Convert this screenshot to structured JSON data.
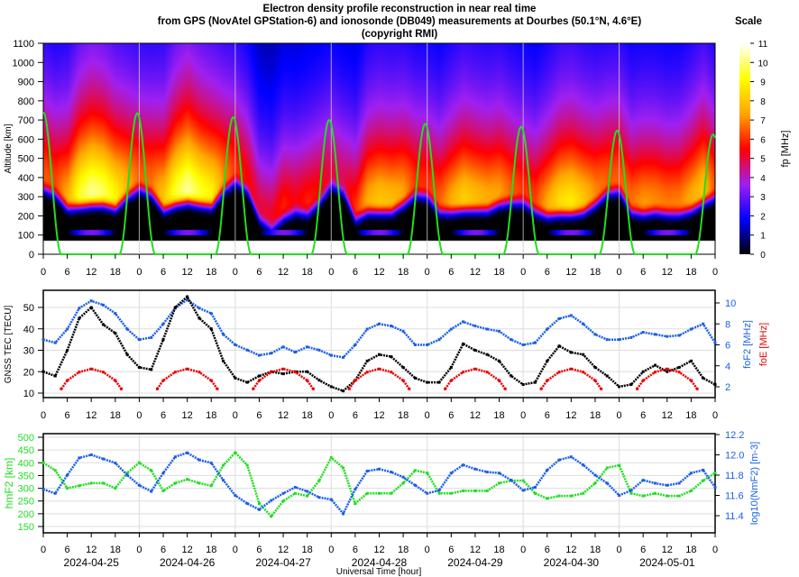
{
  "title": {
    "line1": "Electron density profile reconstruction in near real time",
    "line2": "from GPS (NovAtel GPStation-6) and ionosonde (DB049) measurements at Dourbes (50.1°N, 4.6°E)",
    "line3": "(copyright RMI)",
    "scale_label": "Scale"
  },
  "xaxis": {
    "label": "Universal Time [hour]",
    "hour_ticks": [
      "0",
      "6",
      "12",
      "18"
    ],
    "end_tick": "0",
    "dates": [
      "2024-04-25",
      "2024-04-26",
      "2024-04-27",
      "2024-04-28",
      "2024-04-29",
      "2024-04-30",
      "2024-05-01"
    ]
  },
  "colors": {
    "tec": "#000000",
    "foF2": "#1a5fe6",
    "foE": "#e60000",
    "hmF2": "#22dd22",
    "NmF2": "#1a5fe6",
    "solar_curve": "#22dd22"
  },
  "chart_data": [
    {
      "type": "heatmap",
      "ylabel": "Altitude [km]",
      "ylim": [
        0,
        1100
      ],
      "yticks": [
        "0",
        "100",
        "200",
        "300",
        "400",
        "500",
        "600",
        "700",
        "800",
        "900",
        "1000",
        "1100"
      ],
      "xlim_hours": [
        0,
        168
      ],
      "colorbar": {
        "label": "fp [MHz]",
        "range": [
          0,
          11
        ],
        "ticks": [
          "0",
          "1",
          "2",
          "3",
          "4",
          "5",
          "6",
          "7",
          "8",
          "9",
          "10",
          "11"
        ],
        "colormap": [
          "#000000",
          "#0000ff",
          "#a020f0",
          "#ff0000",
          "#ffa500",
          "#ffff00",
          "#ffffff"
        ]
      },
      "min_altitude_km": 75,
      "green_curve": {
        "peak_hours": [
          0,
          23.5,
          47.5,
          71.5,
          95.5,
          119.5,
          143.5,
          167.5
        ],
        "peak_altitude_km": [
          740,
          735,
          715,
          700,
          680,
          665,
          645,
          625
        ],
        "halfwidth_hours": 4.5
      }
    },
    {
      "type": "scatter",
      "ylabel_left": "GNSS TEC [TECU]",
      "ylabel_right": [
        "foF2 [MHz]",
        "foE [MHz]"
      ],
      "left_ticks": [
        "10",
        "20",
        "30",
        "40",
        "50"
      ],
      "right_ticks": [
        "2",
        "4",
        "6",
        "8",
        "10"
      ],
      "x_hours": [
        0,
        3,
        6,
        9,
        12,
        15,
        18,
        21,
        24,
        27,
        30,
        33,
        36,
        39,
        42,
        45,
        48,
        51,
        54,
        57,
        60,
        63,
        66,
        69,
        72,
        75,
        78,
        81,
        84,
        87,
        90,
        93,
        96,
        99,
        102,
        105,
        108,
        111,
        114,
        117,
        120,
        123,
        126,
        129,
        132,
        135,
        138,
        141,
        144,
        147,
        150,
        153,
        156,
        159,
        162,
        165,
        168
      ],
      "series": [
        {
          "name": "GNSS TEC [TECU]",
          "axis": "left",
          "values": [
            20,
            18,
            30,
            45,
            50,
            42,
            38,
            28,
            22,
            21,
            35,
            50,
            55,
            45,
            40,
            25,
            17,
            15,
            18,
            20,
            19,
            20,
            20,
            16,
            13,
            11,
            16,
            25,
            28,
            27,
            22,
            17,
            15,
            15,
            22,
            33,
            30,
            28,
            25,
            18,
            14,
            15,
            25,
            32,
            29,
            28,
            22,
            18,
            13,
            14,
            20,
            23,
            20,
            22,
            25,
            17,
            14
          ]
        },
        {
          "name": "foF2 [MHz]",
          "axis": "right",
          "values": [
            6.5,
            6.2,
            7.5,
            9.5,
            10.2,
            9.8,
            9.0,
            7.5,
            6.5,
            6.7,
            8.0,
            9.5,
            10.3,
            9.5,
            9.0,
            7.0,
            6.0,
            5.5,
            5.0,
            5.2,
            5.8,
            5.3,
            5.8,
            5.5,
            5.0,
            4.8,
            6.0,
            7.5,
            8.0,
            7.8,
            7.3,
            6.0,
            6.0,
            6.5,
            7.5,
            8.2,
            7.8,
            7.5,
            7.3,
            6.5,
            6.0,
            6.2,
            7.5,
            8.5,
            8.8,
            8.0,
            7.0,
            6.5,
            6.5,
            6.7,
            7.2,
            7.0,
            6.8,
            6.9,
            7.5,
            8.0,
            6.2
          ]
        },
        {
          "name": "foE [MHz]",
          "axis": "right",
          "daily_hours": [
            4.5,
            6,
            9,
            12,
            15,
            18,
            19.5
          ],
          "daily_values": [
            1.8,
            2.6,
            3.4,
            3.7,
            3.4,
            2.6,
            1.8
          ]
        }
      ]
    },
    {
      "type": "scatter",
      "ylabel_left": "hmF2 [km]",
      "ylabel_right": "log10(NmF2) [m-3]",
      "left_ticks": [
        "150",
        "200",
        "250",
        "300",
        "350",
        "400",
        "450",
        "500"
      ],
      "right_ticks": [
        "11.4",
        "11.6",
        "11.8",
        "12.0",
        "12.2"
      ],
      "x_hours": [
        0,
        3,
        6,
        9,
        12,
        15,
        18,
        21,
        24,
        27,
        30,
        33,
        36,
        39,
        42,
        45,
        48,
        51,
        54,
        57,
        60,
        63,
        66,
        69,
        72,
        75,
        78,
        81,
        84,
        87,
        90,
        93,
        96,
        99,
        102,
        105,
        108,
        111,
        114,
        117,
        120,
        123,
        126,
        129,
        132,
        135,
        138,
        141,
        144,
        147,
        150,
        153,
        156,
        159,
        162,
        165,
        168
      ],
      "series": [
        {
          "name": "hmF2 [km]",
          "axis": "left",
          "values": [
            400,
            370,
            300,
            310,
            320,
            320,
            300,
            360,
            400,
            370,
            290,
            320,
            335,
            320,
            310,
            390,
            440,
            390,
            240,
            190,
            250,
            280,
            270,
            330,
            420,
            380,
            240,
            280,
            280,
            280,
            320,
            370,
            360,
            280,
            280,
            290,
            290,
            290,
            320,
            330,
            330,
            280,
            260,
            270,
            270,
            280,
            320,
            380,
            390,
            280,
            270,
            280,
            270,
            270,
            290,
            330,
            360
          ]
        },
        {
          "name": "log10(NmF2) [m-3]",
          "axis": "right",
          "values": [
            11.66,
            11.62,
            11.8,
            11.97,
            12.0,
            11.96,
            11.92,
            11.8,
            11.7,
            11.64,
            11.82,
            11.98,
            12.02,
            11.95,
            11.92,
            11.75,
            11.6,
            11.52,
            11.46,
            11.55,
            11.62,
            11.68,
            11.64,
            11.58,
            11.56,
            11.42,
            11.66,
            11.84,
            11.86,
            11.83,
            11.78,
            11.7,
            11.62,
            11.65,
            11.82,
            11.9,
            11.86,
            11.83,
            11.82,
            11.75,
            11.65,
            11.68,
            11.85,
            11.95,
            11.98,
            11.9,
            11.8,
            11.72,
            11.6,
            11.65,
            11.75,
            11.72,
            11.7,
            11.72,
            11.82,
            11.85,
            11.68
          ]
        }
      ]
    }
  ]
}
